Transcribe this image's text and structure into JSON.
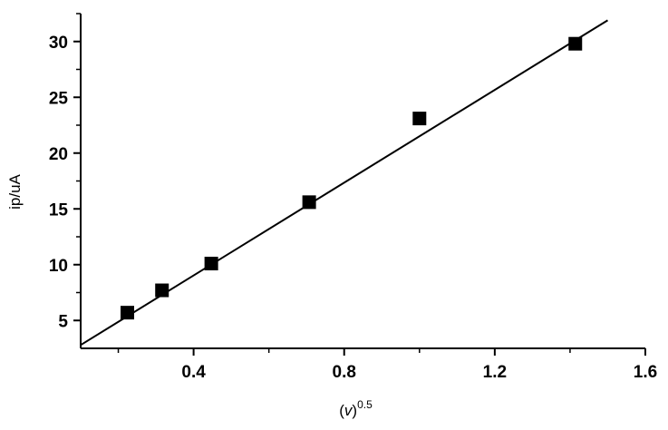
{
  "chart_data": {
    "type": "scatter",
    "title": "",
    "xlabel": "(v)",
    "xlabel_superscript": "0.5",
    "ylabel": "ip/uA",
    "xlim": [
      0.1,
      1.6
    ],
    "ylim": [
      2.5,
      32.5
    ],
    "x_ticks": [
      0.4,
      0.8,
      1.2,
      1.6
    ],
    "x_tick_labels": [
      "0.4",
      "0.8",
      "1.2",
      "1.6"
    ],
    "x_minor_ticks": [
      0.2,
      0.6,
      1.0,
      1.4
    ],
    "y_ticks": [
      5,
      10,
      15,
      20,
      25,
      30
    ],
    "y_tick_labels": [
      "5",
      "10",
      "15",
      "20",
      "25",
      "30"
    ],
    "y_minor_ticks": [
      7.5,
      12.5,
      17.5,
      22.5,
      27.5,
      32.5
    ],
    "grid": false,
    "series": [
      {
        "type": "scatter",
        "marker": "square",
        "color": "#000000",
        "x": [
          0.224,
          0.316,
          0.447,
          0.707,
          1.0,
          1.414
        ],
        "y": [
          5.7,
          7.7,
          10.1,
          15.6,
          23.1,
          29.8
        ]
      },
      {
        "type": "line",
        "color": "#000000",
        "x": [
          0.1,
          1.5
        ],
        "y": [
          2.8,
          31.9
        ]
      }
    ]
  }
}
